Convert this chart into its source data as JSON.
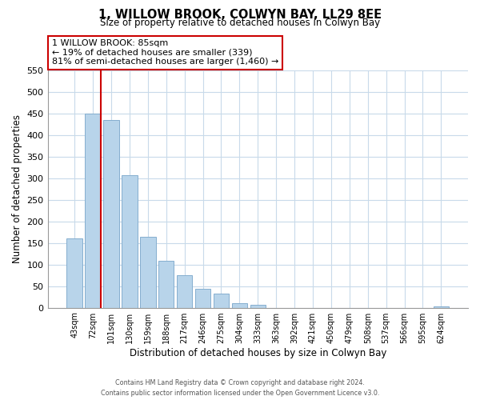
{
  "title": "1, WILLOW BROOK, COLWYN BAY, LL29 8EE",
  "subtitle": "Size of property relative to detached houses in Colwyn Bay",
  "xlabel": "Distribution of detached houses by size in Colwyn Bay",
  "ylabel": "Number of detached properties",
  "bar_labels": [
    "43sqm",
    "72sqm",
    "101sqm",
    "130sqm",
    "159sqm",
    "188sqm",
    "217sqm",
    "246sqm",
    "275sqm",
    "304sqm",
    "333sqm",
    "363sqm",
    "392sqm",
    "421sqm",
    "450sqm",
    "479sqm",
    "508sqm",
    "537sqm",
    "566sqm",
    "595sqm",
    "624sqm"
  ],
  "bar_values": [
    160,
    450,
    435,
    308,
    165,
    108,
    75,
    43,
    33,
    10,
    7,
    0,
    0,
    0,
    0,
    0,
    0,
    0,
    0,
    0,
    3
  ],
  "bar_color": "#b8d4ea",
  "bar_edge_color": "#85aecf",
  "reference_line_color": "#cc0000",
  "annotation_box_text": "1 WILLOW BROOK: 85sqm\n← 19% of detached houses are smaller (339)\n81% of semi-detached houses are larger (1,460) →",
  "ylim": [
    0,
    550
  ],
  "yticks": [
    0,
    50,
    100,
    150,
    200,
    250,
    300,
    350,
    400,
    450,
    500,
    550
  ],
  "footer_line1": "Contains HM Land Registry data © Crown copyright and database right 2024.",
  "footer_line2": "Contains public sector information licensed under the Open Government Licence v3.0.",
  "bg_color": "#ffffff",
  "grid_color": "#c8daea"
}
